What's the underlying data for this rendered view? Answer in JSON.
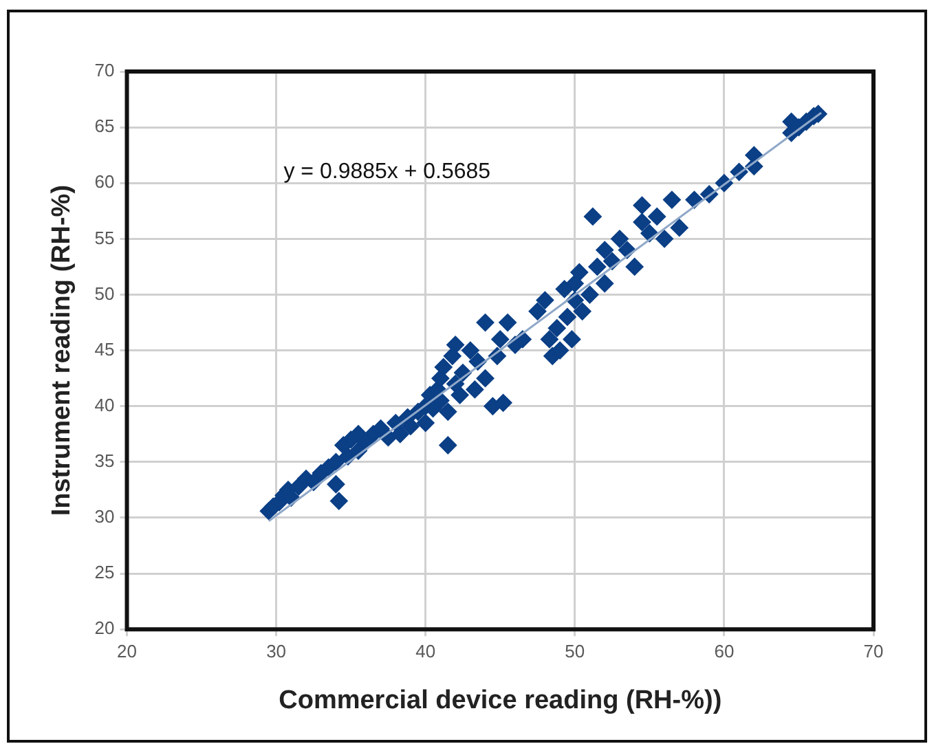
{
  "chart_data": {
    "type": "scatter",
    "xlabel": "Commercial device reading (RH-%))",
    "ylabel": "Instrument reading (RH-%)",
    "annotations": [
      "y = 0.9885x + 0.5685"
    ],
    "xlim": [
      20,
      70
    ],
    "xticks": [
      20,
      30,
      40,
      50,
      60,
      70
    ],
    "ylim": [
      20,
      70
    ],
    "yticks": [
      20,
      25,
      30,
      35,
      40,
      45,
      50,
      55,
      60,
      65,
      70
    ],
    "grid": true,
    "series": [
      {
        "type": "scatter",
        "marker": "diamond",
        "color": "#0b3f86",
        "x": [
          29.5,
          29.8,
          30.2,
          30.5,
          30.8,
          31,
          31.5,
          32,
          32.5,
          33,
          33.5,
          34,
          34.2,
          34,
          34.5,
          34.8,
          35,
          35.5,
          35.5,
          36,
          36.5,
          37,
          37.5,
          38,
          38.3,
          38.8,
          39,
          39.5,
          40,
          40,
          40.3,
          40.5,
          40.8,
          41,
          41,
          41.2,
          41.5,
          41.5,
          41.8,
          42,
          42,
          42.3,
          42.5,
          43,
          43.3,
          43.5,
          44,
          44,
          44.5,
          44.8,
          45,
          45.2,
          45.5,
          46,
          46.5,
          47.5,
          48,
          48.3,
          48.5,
          48.8,
          49,
          49.3,
          49.5,
          49.8,
          50,
          50,
          50.3,
          50.5,
          51,
          51.2,
          51.5,
          52,
          52,
          52.5,
          53,
          53.5,
          54,
          54.5,
          54.5,
          55,
          55.5,
          56,
          56.5,
          57,
          58,
          59,
          60,
          61,
          62,
          62,
          64.5,
          64.5,
          65,
          65.5,
          66,
          66.3
        ],
        "values": [
          30.6,
          31,
          31.4,
          32,
          32.5,
          31.8,
          32.8,
          33.5,
          33.2,
          34,
          34.5,
          33,
          31.5,
          35,
          36.5,
          35.5,
          37,
          36,
          37.5,
          36.8,
          37.5,
          38,
          37.2,
          38.5,
          37.5,
          39,
          38.2,
          39.5,
          38.5,
          40,
          41,
          39.8,
          41.5,
          40.5,
          42.5,
          43.5,
          39.5,
          36.5,
          44.5,
          42,
          45.5,
          41,
          43,
          45,
          41.5,
          44,
          47.5,
          42.5,
          40,
          44.5,
          46,
          40.3,
          47.5,
          45.5,
          46,
          48.5,
          49.5,
          46,
          44.5,
          47,
          45,
          50.5,
          48,
          46,
          49.5,
          51,
          52,
          48.5,
          50,
          57,
          52.5,
          54,
          51,
          53,
          55,
          54,
          52.5,
          56.5,
          58,
          55.5,
          57,
          55,
          58.5,
          56,
          58.5,
          59,
          60,
          61,
          62.5,
          61.5,
          64.5,
          65.5,
          65,
          65.5,
          66,
          66.2
        ]
      },
      {
        "type": "line",
        "marker": "none",
        "color": "#8fa8c8",
        "x": [
          29.5,
          66.5
        ],
        "values": [
          29.7,
          66.3
        ]
      }
    ]
  }
}
